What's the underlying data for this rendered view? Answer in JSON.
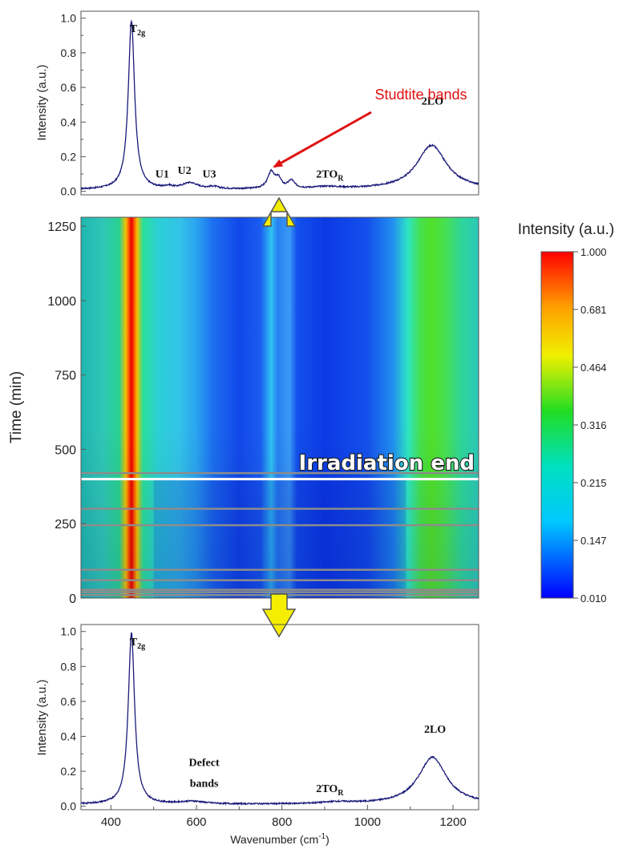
{
  "chart_data": [
    {
      "type": "line",
      "panel": "top",
      "ylabel": "Intensity (a.u.)",
      "xlim": [
        330,
        1260
      ],
      "ylim": [
        -0.02,
        1.04
      ],
      "yticks": [
        "0.0",
        "0.2",
        "0.4",
        "0.6",
        "0.8",
        "1.0"
      ],
      "ytick_values": [
        0.0,
        0.2,
        0.4,
        0.6,
        0.8,
        1.0
      ],
      "peaks": [
        {
          "center": 448,
          "height": 0.97,
          "width": 9
        },
        {
          "center": 535,
          "height": 0.012,
          "width": 10
        },
        {
          "center": 585,
          "height": 0.035,
          "width": 22
        },
        {
          "center": 640,
          "height": 0.012,
          "width": 14
        },
        {
          "center": 775,
          "height": 0.095,
          "width": 10
        },
        {
          "center": 792,
          "height": 0.05,
          "width": 8
        },
        {
          "center": 822,
          "height": 0.045,
          "width": 9
        },
        {
          "center": 905,
          "height": 0.012,
          "width": 40
        },
        {
          "center": 1150,
          "height": 0.255,
          "width": 42
        }
      ],
      "annotations": [
        {
          "text": "T",
          "sub": "2g",
          "x": 462,
          "y": 0.92
        },
        {
          "text": "U1",
          "x": 520,
          "y": 0.08
        },
        {
          "text": "U2",
          "x": 572,
          "y": 0.1
        },
        {
          "text": "U3",
          "x": 630,
          "y": 0.08
        },
        {
          "text": "2TO",
          "sub": "R",
          "x": 912,
          "y": 0.08
        },
        {
          "text": "2LO",
          "x": 1152,
          "y": 0.5
        }
      ],
      "callout": {
        "text": "Studtite bands",
        "x": 1000,
        "y": 0.53,
        "arrow_to": [
          815,
          0.12
        ]
      }
    },
    {
      "type": "heatmap",
      "panel": "middle",
      "ylabel": "Time (min)",
      "xlim": [
        330,
        1260
      ],
      "ylim": [
        0,
        1280
      ],
      "yticks": [
        "0",
        "250",
        "500",
        "750",
        "1000",
        "1250"
      ],
      "ytick_values": [
        0,
        250,
        500,
        750,
        1000,
        1250
      ],
      "event_line": {
        "text": "Irradiation end",
        "y": 400
      },
      "gray_lines_y": [
        10,
        20,
        28,
        60,
        95,
        245,
        300,
        420
      ],
      "colorbar": {
        "title": "Intensity (a.u.)",
        "ticks": [
          "1.000",
          "0.681",
          "0.464",
          "0.316",
          "0.215",
          "0.147",
          "0.010"
        ],
        "colors": [
          "#ff0000",
          "#ffd200",
          "#f0ff00",
          "#22dd22",
          "#00e0c0",
          "#00c8ff",
          "#0000ff"
        ]
      }
    },
    {
      "type": "line",
      "panel": "bottom",
      "ylabel": "Intensity (a.u.)",
      "xlabel": "Wavenumber (cm",
      "xlabel_sup": "-1",
      "xlabel_end": ")",
      "xlim": [
        330,
        1260
      ],
      "ylim": [
        -0.02,
        1.04
      ],
      "xticks": [
        "400",
        "600",
        "800",
        "1000",
        "1200"
      ],
      "xtick_values": [
        400,
        600,
        800,
        1000,
        1200
      ],
      "yticks": [
        "0.0",
        "0.2",
        "0.4",
        "0.6",
        "0.8",
        "1.0"
      ],
      "ytick_values": [
        0.0,
        0.2,
        0.4,
        0.6,
        0.8,
        1.0
      ],
      "peaks": [
        {
          "center": 448,
          "height": 0.98,
          "width": 9
        },
        {
          "center": 590,
          "height": 0.015,
          "width": 35
        },
        {
          "center": 930,
          "height": 0.01,
          "width": 45
        },
        {
          "center": 1152,
          "height": 0.27,
          "width": 40
        }
      ],
      "annotations": [
        {
          "text": "T",
          "sub": "2g",
          "x": 462,
          "y": 0.92
        },
        {
          "text": "Defect",
          "x": 618,
          "y": 0.23
        },
        {
          "text": "bands",
          "x": 618,
          "y": 0.11
        },
        {
          "text": "2TO",
          "sub": "R",
          "x": 912,
          "y": 0.08
        },
        {
          "text": "2LO",
          "x": 1158,
          "y": 0.42
        }
      ]
    }
  ]
}
